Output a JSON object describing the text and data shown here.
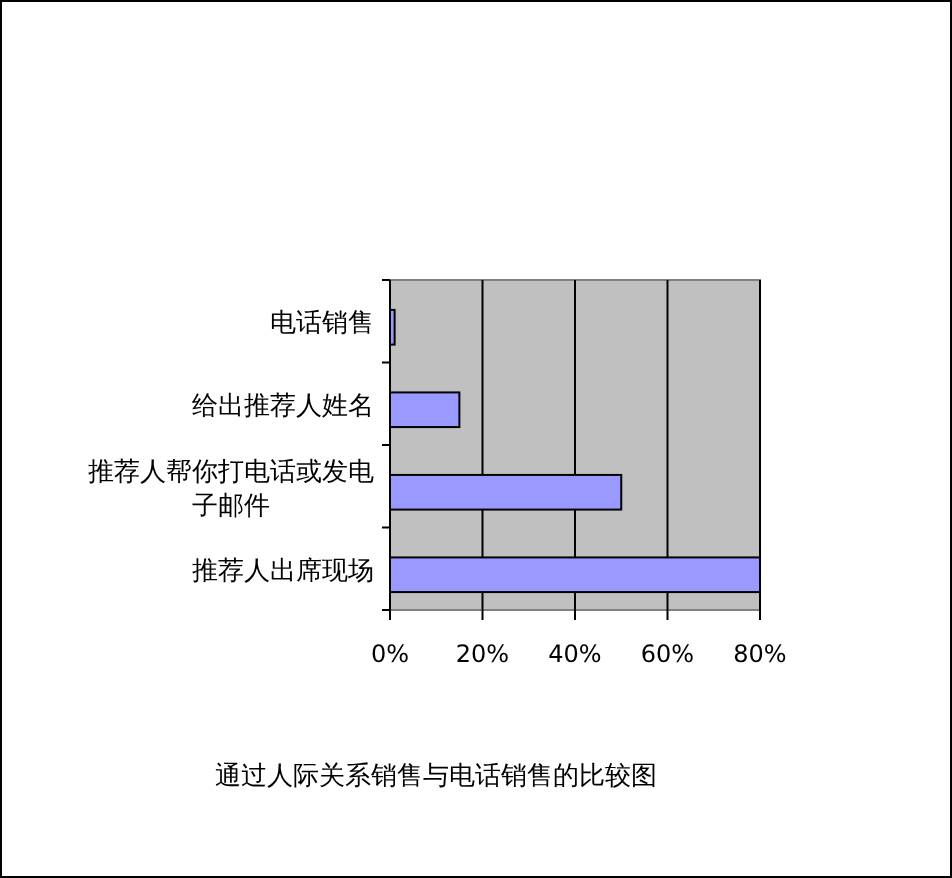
{
  "chart_data": {
    "type": "bar",
    "orientation": "horizontal",
    "title": "通过人际关系销售与电话销售的比较图",
    "categories": [
      "电话销售",
      "给出推荐人姓名",
      "推荐人帮你打电话或发电子邮件",
      "推荐人出席现场"
    ],
    "values": [
      1,
      15,
      50,
      80
    ],
    "color": "#9999ff",
    "xlim": [
      0,
      80
    ],
    "xticks": [
      {
        "value": 0,
        "label": "0%"
      },
      {
        "value": 20,
        "label": "20%"
      },
      {
        "value": 40,
        "label": "40%"
      },
      {
        "value": 60,
        "label": "60%"
      },
      {
        "value": 80,
        "label": "80%"
      }
    ],
    "grid": "x"
  }
}
